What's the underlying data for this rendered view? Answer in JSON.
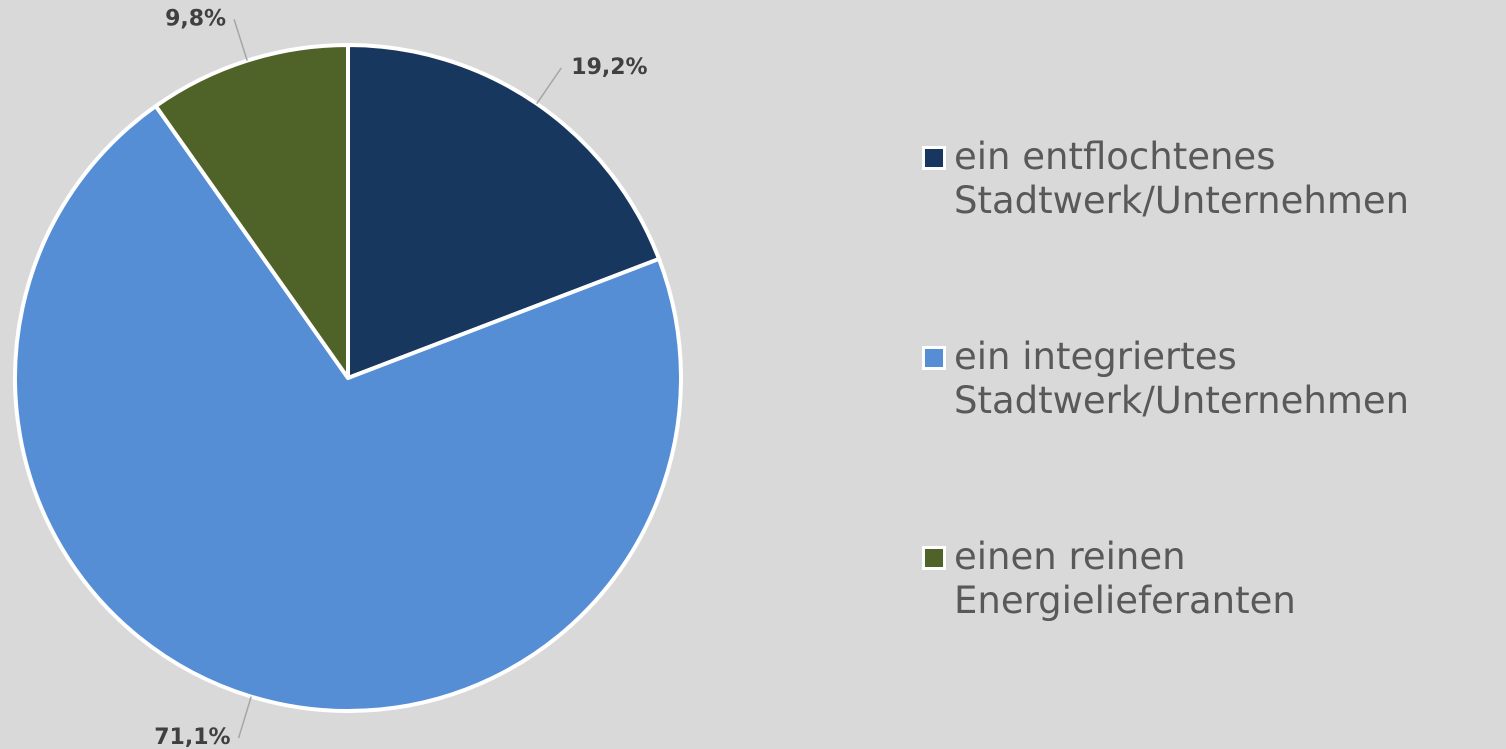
{
  "chart_data": {
    "type": "pie",
    "series": [
      {
        "name": "ein entflochtenes Stadtwerk/Unternehmen",
        "color": "#17375e",
        "values": [
          19.2
        ],
        "value_labels": [
          "19,2%"
        ]
      },
      {
        "name": "ein integriertes Stadtwerk/Unternehmen",
        "color": "#558ed5",
        "values": [
          71.1
        ],
        "value_labels": [
          "71,1%"
        ]
      },
      {
        "name": "einen reinen Energielieferanten",
        "color": "#4f6228",
        "values": [
          9.8
        ],
        "value_labels": [
          "9,8%"
        ]
      }
    ],
    "legend": "right"
  }
}
